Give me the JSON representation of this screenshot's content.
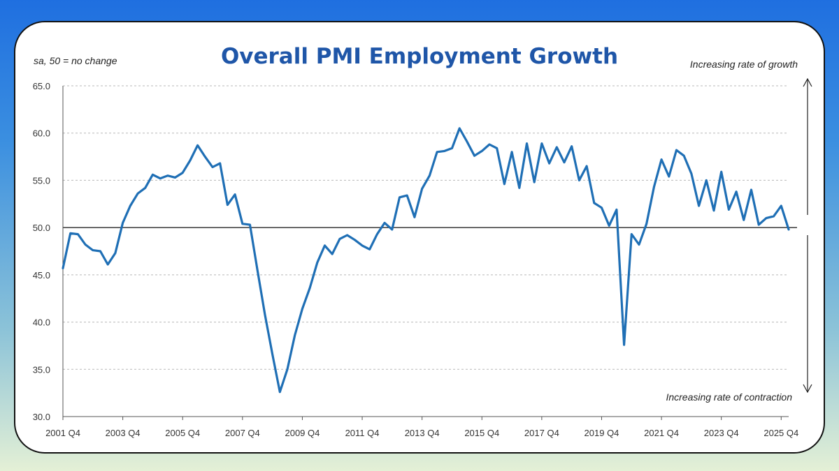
{
  "chart_data": {
    "type": "line",
    "title": "Overall PMI Employment Growth",
    "ylabel": "sa, 50 = no change",
    "annotations": {
      "top": "Increasing rate of growth",
      "bottom": "Increasing rate of contraction"
    },
    "ylim": [
      30,
      65
    ],
    "yticks": [
      30,
      35,
      40,
      45,
      50,
      55,
      60,
      65
    ],
    "ytick_labels": [
      "30.0",
      "35.0",
      "40.0",
      "45.0",
      "50.0",
      "55.0",
      "60.0",
      "65.0"
    ],
    "reference_line": 50,
    "x_tick_labels": [
      "2001 Q4",
      "2003 Q4",
      "2005 Q4",
      "2007 Q4",
      "2009 Q4",
      "2011 Q4",
      "2013 Q4",
      "2015 Q4",
      "2017 Q4",
      "2019 Q4",
      "2021 Q4",
      "2023 Q4",
      "2025 Q4"
    ],
    "x_start": "2001 Q4",
    "x_end": "2025 Q4",
    "series": [
      {
        "name": "Overall PMI Employment",
        "color": "#1f6fb5",
        "values": [
          45.7,
          49.4,
          49.3,
          48.2,
          47.6,
          47.5,
          46.1,
          47.3,
          50.5,
          52.3,
          53.6,
          54.2,
          55.6,
          55.2,
          55.5,
          55.3,
          55.8,
          57.1,
          58.7,
          57.5,
          56.4,
          56.8,
          52.4,
          53.5,
          50.4,
          50.3,
          45.5,
          40.8,
          36.6,
          32.6,
          35.0,
          38.6,
          41.4,
          43.6,
          46.3,
          48.1,
          47.2,
          48.8,
          49.2,
          48.7,
          48.1,
          47.7,
          49.3,
          50.5,
          49.8,
          53.2,
          53.4,
          51.1,
          54.1,
          55.5,
          58.0,
          58.1,
          58.4,
          60.5,
          59.1,
          57.6,
          58.1,
          58.8,
          58.4,
          54.6,
          58.0,
          54.2,
          58.9,
          54.8,
          58.9,
          56.8,
          58.5,
          56.9,
          58.6,
          55.0,
          56.5,
          52.6,
          52.1,
          50.2,
          51.9,
          37.6,
          49.3,
          48.2,
          50.4,
          54.3,
          57.2,
          55.4,
          58.2,
          57.6,
          55.7,
          52.3,
          55.0,
          51.8,
          55.9,
          51.9,
          53.8,
          50.8,
          54.0,
          50.3,
          51.0,
          51.2,
          52.3,
          49.8
        ]
      }
    ]
  }
}
